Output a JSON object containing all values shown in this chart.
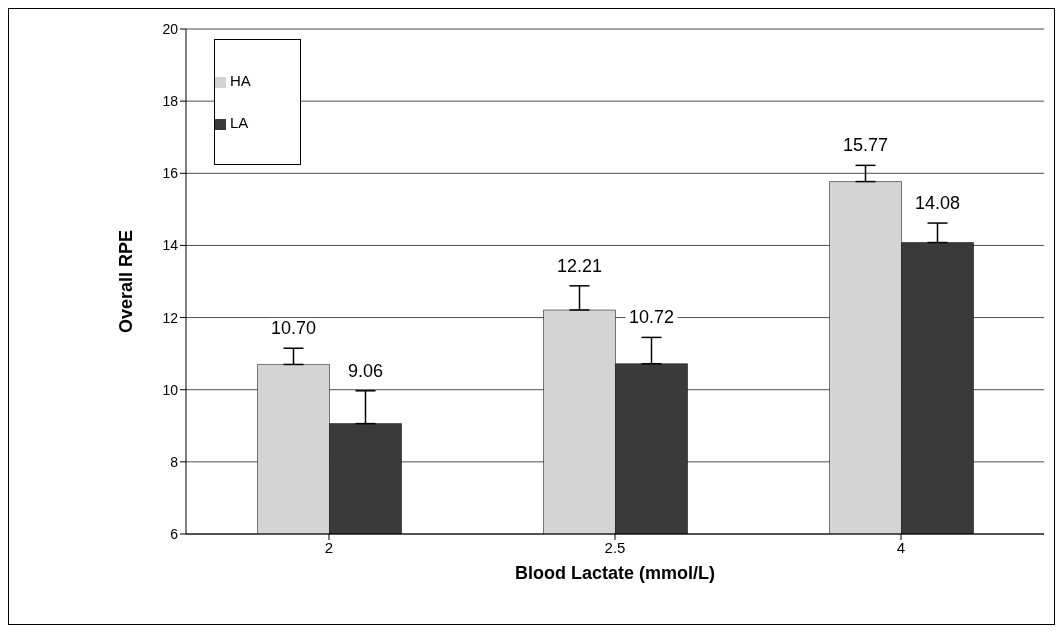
{
  "chart_data": {
    "type": "bar",
    "xlabel": "Blood Lactate (mmol/L)",
    "ylabel": "Overall RPE",
    "categories": [
      "2",
      "2.5",
      "4"
    ],
    "series": [
      {
        "name": "HA",
        "color": "#d4d4d4",
        "values": [
          10.7,
          12.21,
          15.77
        ],
        "errors": [
          [
            10.7,
            11.15
          ],
          [
            12.21,
            12.88
          ],
          [
            15.77,
            16.22
          ]
        ],
        "value_labels": [
          "10.70",
          "12.21",
          "15.77"
        ]
      },
      {
        "name": "LA",
        "color": "#3a3a3a",
        "values": [
          9.06,
          10.72,
          14.08
        ],
        "errors": [
          [
            9.06,
            9.97
          ],
          [
            10.72,
            11.45
          ],
          [
            14.08,
            14.62
          ]
        ],
        "value_labels": [
          "9.06",
          "10.72",
          "14.08"
        ]
      }
    ],
    "ylim": [
      6,
      20
    ],
    "yticks": [
      6,
      8,
      10,
      12,
      14,
      16,
      18,
      20
    ],
    "grid": "y",
    "legend": "top left"
  }
}
